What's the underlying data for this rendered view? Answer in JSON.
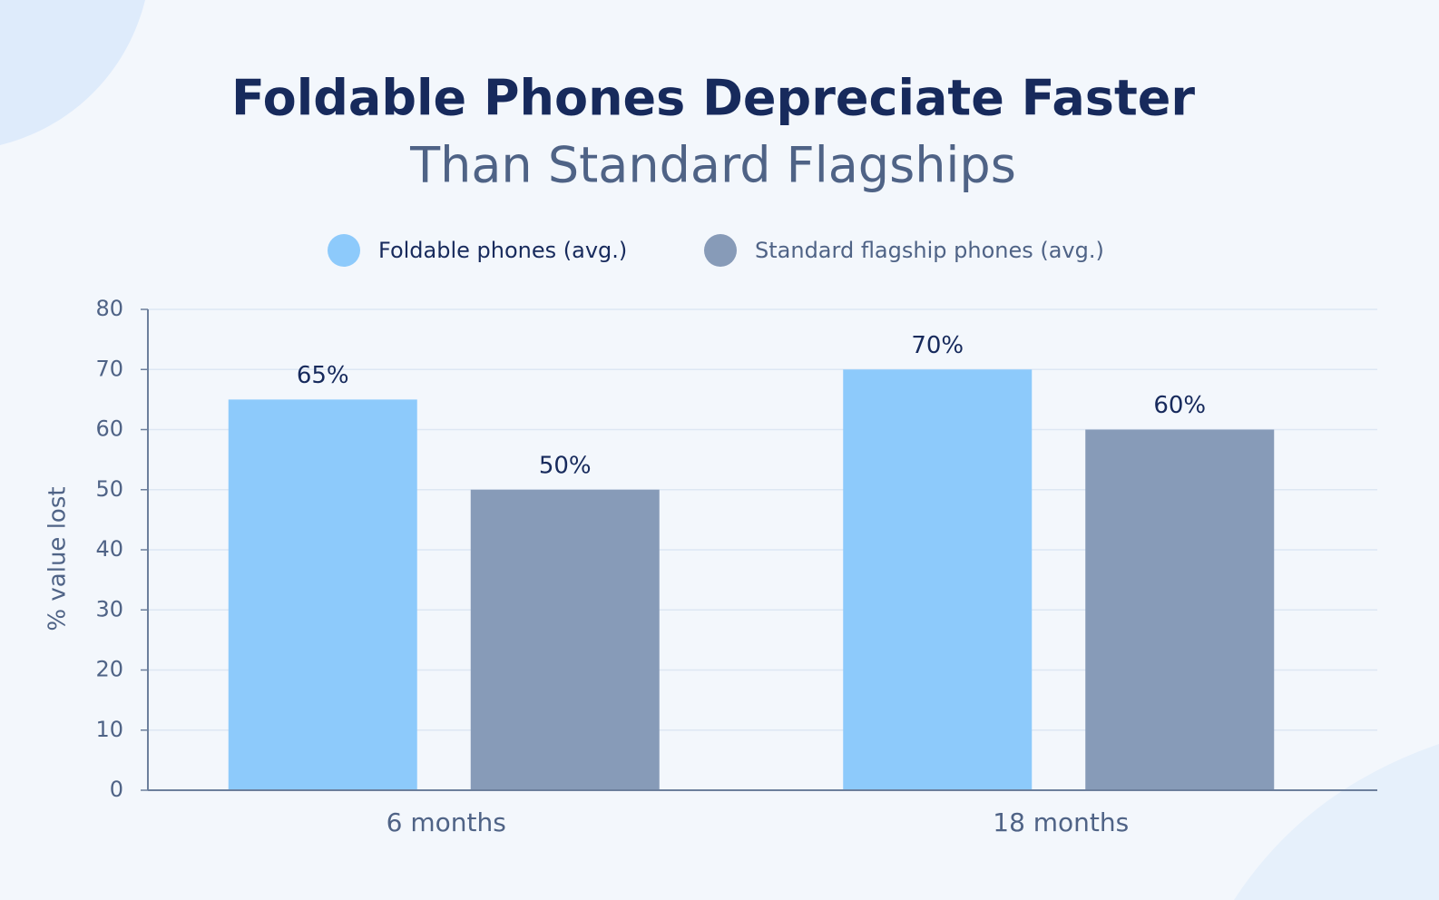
{
  "chart_data": {
    "type": "bar",
    "title": "Foldable Phones Depreciate Faster",
    "subtitle": "Than Standard Flagships",
    "y_label": "% value lost",
    "categories": [
      "6 months",
      "18 months"
    ],
    "series": [
      {
        "name": "Foldable phones (avg.)",
        "color": "#8dcafb",
        "values": [
          65,
          70
        ],
        "value_labels": [
          "65%",
          "70%"
        ]
      },
      {
        "name": "Standard flagship phones (avg.)",
        "color": "#879bb8",
        "values": [
          50,
          60
        ],
        "value_labels": [
          "50%",
          "60%"
        ]
      }
    ],
    "ylim": [
      0,
      80
    ],
    "yticks": [
      0,
      10,
      20,
      30,
      40,
      50,
      60,
      70,
      80
    ],
    "grid": true,
    "legend": "top"
  }
}
